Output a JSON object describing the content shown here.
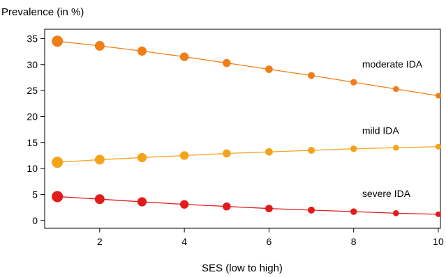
{
  "chart_data": {
    "type": "line",
    "title": "",
    "ylabel": "Prevalence (in %)",
    "xlabel": "SES (low to high)",
    "x": [
      1,
      2,
      3,
      4,
      5,
      6,
      7,
      8,
      9,
      10
    ],
    "xticks": [
      2,
      4,
      6,
      8,
      10
    ],
    "yticks": [
      0,
      5,
      10,
      15,
      20,
      25,
      30,
      35
    ],
    "xlim": [
      0.7,
      10.05
    ],
    "ylim": [
      -1.5,
      36.8
    ],
    "grid": false,
    "series": [
      {
        "name": "moderate IDA",
        "color": "#f07e18",
        "values": [
          34.5,
          33.6,
          32.6,
          31.5,
          30.3,
          29.1,
          27.9,
          26.6,
          25.3,
          24.0
        ]
      },
      {
        "name": "mild IDA",
        "color": "#f5a21b",
        "values": [
          11.2,
          11.7,
          12.1,
          12.5,
          12.9,
          13.2,
          13.5,
          13.8,
          14.0,
          14.2
        ]
      },
      {
        "name": "severe IDA",
        "color": "#e31a1c",
        "values": [
          4.6,
          4.1,
          3.6,
          3.1,
          2.7,
          2.3,
          2.0,
          1.7,
          1.4,
          1.2
        ]
      }
    ],
    "marker_size_note": "marker size decreases with SES",
    "marker_sizes": [
      8,
      7,
      6.6,
      6.2,
      5.8,
      5.4,
      5,
      4.7,
      4.3,
      4
    ]
  }
}
